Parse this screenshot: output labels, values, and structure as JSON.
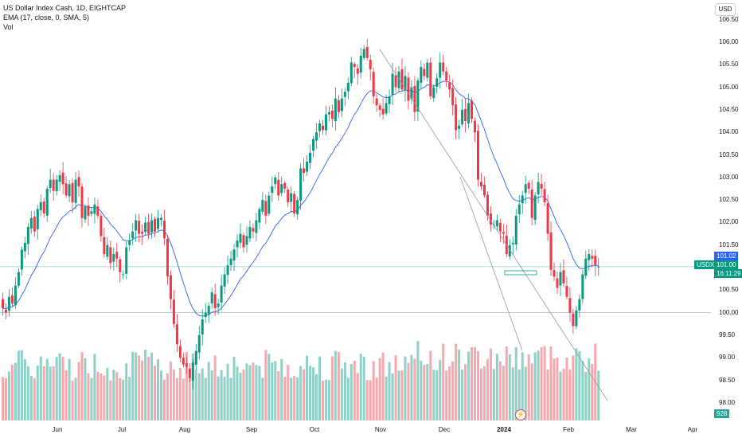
{
  "legend": {
    "symbol_line": "US Dollar Index Cash, 1D, EIGHTCAP",
    "ema_line": "EMA (17, close, 0, SMA, 5)",
    "vol_line": "Vol"
  },
  "currency": "USD",
  "price_tags": {
    "last_price": "101.02",
    "symbol": "USDX",
    "close_price": "101.00",
    "countdown": "16:11:29",
    "volume": "928"
  },
  "colors": {
    "up": "#089981",
    "down": "#f23645",
    "vol_up": "#8fd1c7",
    "vol_down": "#f7a8ae",
    "ema": "#2962ff",
    "trendline": "#9598a1",
    "hline": "#b2b5be",
    "last_price_tag": "#2962ff"
  },
  "chart_data": {
    "type": "candlestick",
    "title": "US Dollar Index Cash, 1D, EIGHTCAP",
    "ylim": [
      97.5,
      106.7
    ],
    "y_ticks": [
      "106.50",
      "106.00",
      "105.50",
      "105.00",
      "104.50",
      "104.00",
      "103.50",
      "103.00",
      "102.50",
      "102.00",
      "101.50",
      "100.50",
      "100.00",
      "99.50",
      "99.00",
      "98.50",
      "98.00"
    ],
    "x_ticks": [
      "Jun",
      "Jul",
      "Aug",
      "Sep",
      "Oct",
      "Nov",
      "Dec",
      "2024",
      "Feb",
      "Mar",
      "Apr"
    ],
    "horizontal_levels": [
      100.0,
      101.02
    ],
    "closes": [
      100.1,
      100.0,
      100.35,
      100.2,
      100.6,
      100.9,
      101.4,
      101.55,
      101.9,
      102.1,
      101.8,
      102.3,
      102.45,
      102.2,
      102.75,
      102.95,
      102.7,
      102.95,
      103.05,
      102.85,
      102.6,
      102.85,
      102.45,
      102.95,
      102.8,
      102.1,
      102.35,
      102.15,
      102.25,
      102.4,
      102.15,
      101.7,
      101.3,
      101.5,
      101.1,
      101.3,
      101.2,
      100.9,
      100.85,
      101.45,
      101.6,
      101.8,
      102.05,
      101.75,
      101.75,
      102.0,
      101.75,
      102.05,
      101.8,
      102.1,
      102.1,
      101.65,
      100.8,
      100.3,
      99.75,
      99.3,
      99.0,
      98.85,
      98.8,
      98.55,
      98.9,
      99.15,
      99.5,
      99.85,
      100.0,
      100.15,
      100.45,
      100.1,
      100.2,
      100.6,
      100.85,
      101.05,
      101.2,
      101.4,
      101.6,
      101.75,
      101.45,
      101.7,
      101.9,
      101.8,
      102.05,
      102.3,
      102.5,
      102.15,
      102.6,
      102.8,
      103.0,
      102.6,
      102.85,
      102.75,
      102.45,
      102.65,
      102.2,
      102.5,
      103.2,
      103.1,
      103.35,
      103.55,
      103.85,
      104.0,
      104.2,
      104.05,
      104.4,
      104.45,
      104.3,
      104.75,
      104.45,
      104.75,
      104.9,
      105.1,
      105.55,
      105.45,
      105.3,
      105.7,
      105.85,
      105.65,
      105.4,
      104.8,
      104.6,
      104.5,
      104.4,
      104.65,
      104.8,
      105.3,
      105.0,
      105.35,
      104.95,
      105.25,
      104.7,
      105.0,
      104.45,
      105.15,
      105.45,
      105.25,
      105.55,
      104.8,
      105.0,
      105.2,
      105.55,
      105.35,
      105.15,
      104.95,
      104.6,
      104.05,
      104.15,
      104.5,
      104.25,
      104.65,
      104.3,
      104.0,
      102.95,
      102.8,
      102.6,
      102.15,
      101.95,
      101.95,
      102.05,
      101.8,
      101.75,
      101.3,
      101.5,
      101.55,
      102.15,
      102.4,
      102.6,
      102.85,
      102.75,
      102.1,
      102.6,
      102.9,
      102.75,
      102.45,
      101.75,
      100.95,
      100.8,
      100.55,
      100.9,
      100.65,
      100.35,
      100.0,
      99.7,
      100.05,
      100.3,
      100.85,
      101.2,
      101.3,
      101.2,
      101.05,
      101.02
    ],
    "ema_period": 17
  }
}
